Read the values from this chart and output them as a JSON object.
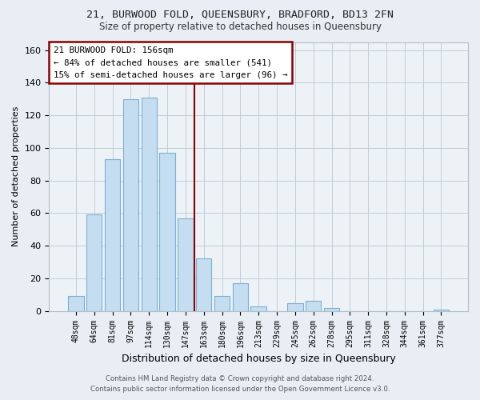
{
  "title": "21, BURWOOD FOLD, QUEENSBURY, BRADFORD, BD13 2FN",
  "subtitle": "Size of property relative to detached houses in Queensbury",
  "xlabel": "Distribution of detached houses by size in Queensbury",
  "ylabel": "Number of detached properties",
  "bar_color": "#c5ddf0",
  "bar_edge_color": "#7ab0d4",
  "categories": [
    "48sqm",
    "64sqm",
    "81sqm",
    "97sqm",
    "114sqm",
    "130sqm",
    "147sqm",
    "163sqm",
    "180sqm",
    "196sqm",
    "213sqm",
    "229sqm",
    "245sqm",
    "262sqm",
    "278sqm",
    "295sqm",
    "311sqm",
    "328sqm",
    "344sqm",
    "361sqm",
    "377sqm"
  ],
  "values": [
    9,
    59,
    93,
    130,
    131,
    97,
    57,
    32,
    9,
    17,
    3,
    0,
    5,
    6,
    2,
    0,
    0,
    0,
    0,
    0,
    1
  ],
  "ylim": [
    0,
    165
  ],
  "yticks": [
    0,
    20,
    40,
    60,
    80,
    100,
    120,
    140,
    160
  ],
  "annotation_title": "21 BURWOOD FOLD: 156sqm",
  "annotation_line1": "← 84% of detached houses are smaller (541)",
  "annotation_line2": "15% of semi-detached houses are larger (96) →",
  "footer1": "Contains HM Land Registry data © Crown copyright and database right 2024.",
  "footer2": "Contains public sector information licensed under the Open Government Licence v3.0.",
  "background_color": "#e8eef4",
  "plot_bg_color": "#edf2f7",
  "vline_x": 6.5,
  "vline_color": "#8b0000"
}
